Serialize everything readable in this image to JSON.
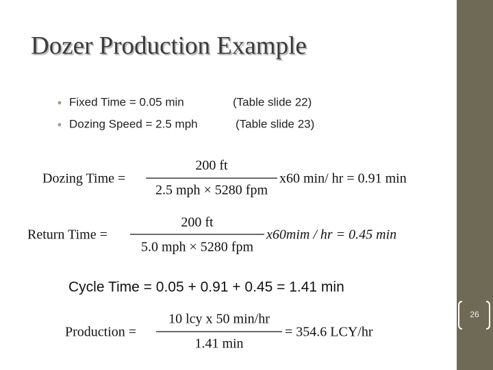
{
  "header": {
    "title": "Dozer Production Example"
  },
  "bullets": [
    {
      "text": "Fixed Time = 0.05 min",
      "note": "(Table slide 22)"
    },
    {
      "text": "Dozing Speed = 2.5 mph",
      "note": "(Table slide 23)"
    }
  ],
  "equations": [
    {
      "lhs": "Dozing Time =",
      "numerator": "200 ft",
      "denominator": "2.5 mph × 5280 fpm",
      "rhs": "x60 min/ hr = 0.91 min"
    },
    {
      "lhs": "Return Time =",
      "numerator": "200 ft",
      "denominator": "5.0 mph × 5280 fpm",
      "rhs": "x60mim / hr = 0.45 min"
    },
    {
      "text": "Cycle Time = 0.05 + 0.91 + 0.45 = 1.41 min"
    },
    {
      "lhs": "Production =",
      "numerator": "10 lcy x 50 min/hr",
      "denominator": "1.41 min",
      "rhs": "= 354.6 LCY/hr"
    }
  ],
  "slide_number": "26"
}
